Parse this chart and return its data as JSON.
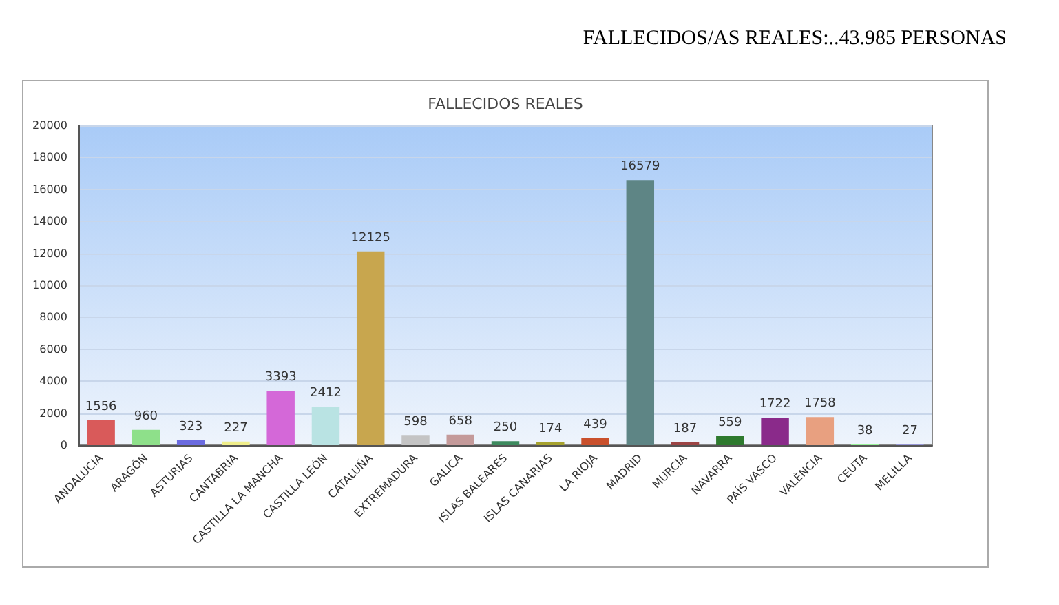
{
  "chart_data": {
    "type": "bar",
    "title": "FALLECIDOS/AS REALES:..43.985 PERSONAS",
    "subtitle": "FALLECIDOS REALES",
    "categories": [
      "ANDALUCIA",
      "ARAGÓN",
      "ASTURIAS",
      "CANTABRIA",
      "CASTILLA LA MANCHA",
      "CASTILLA LEÓN",
      "CATALUÑA",
      "EXTREMADURA",
      "GALICA",
      "ISLAS BALEARES",
      "ISLAS CANARIAS",
      "LA RIOJA",
      "MADRID",
      "MURCIA",
      "NAVARRA",
      "PAÍS VASCO",
      "VALÈNCIA",
      "CEUTA",
      "MELILLA"
    ],
    "values": [
      1556,
      960,
      323,
      227,
      3393,
      2412,
      12125,
      598,
      658,
      250,
      174,
      439,
      16579,
      187,
      559,
      1722,
      1758,
      38,
      27
    ],
    "colors": [
      "#d95a5a",
      "#8ee08a",
      "#6b6be0",
      "#f0ee8a",
      "#d468d8",
      "#b9e3e3",
      "#c8a64e",
      "#c4c4c4",
      "#c49a9a",
      "#3d8a5e",
      "#a6a22e",
      "#c9502c",
      "#5e8585",
      "#9c4444",
      "#2e7a2e",
      "#8a2a8a",
      "#e8a080",
      "#98f098",
      "#9c9cf0"
    ],
    "ylim": [
      0,
      20000
    ],
    "yticks": [
      0,
      2000,
      4000,
      6000,
      8000,
      10000,
      12000,
      14000,
      16000,
      18000,
      20000
    ],
    "grid": "y",
    "data_labels": true
  }
}
